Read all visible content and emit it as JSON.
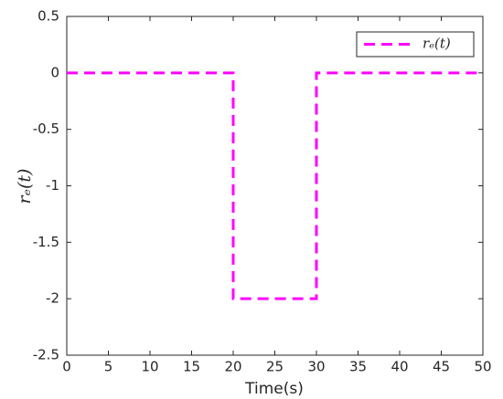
{
  "chart_data": {
    "type": "line",
    "xlabel": "Time(s)",
    "ylabel": "rₑ(t)",
    "x": [
      0,
      20,
      20,
      30,
      30,
      50
    ],
    "series": [
      {
        "name": "rₑ(t)",
        "color": "#ff00ff",
        "values": [
          0,
          0,
          -2,
          -2,
          0,
          0
        ]
      }
    ],
    "xlim": [
      0,
      50
    ],
    "xticks": [
      0,
      5,
      10,
      15,
      20,
      25,
      30,
      35,
      40,
      45,
      50
    ],
    "ylim": [
      -2.5,
      0.5
    ],
    "yticks": [
      -2.5,
      -2,
      -1.5,
      -1,
      -0.5,
      0,
      0.5
    ],
    "grid": false,
    "legend": "top-right",
    "line_style": "dashed"
  }
}
